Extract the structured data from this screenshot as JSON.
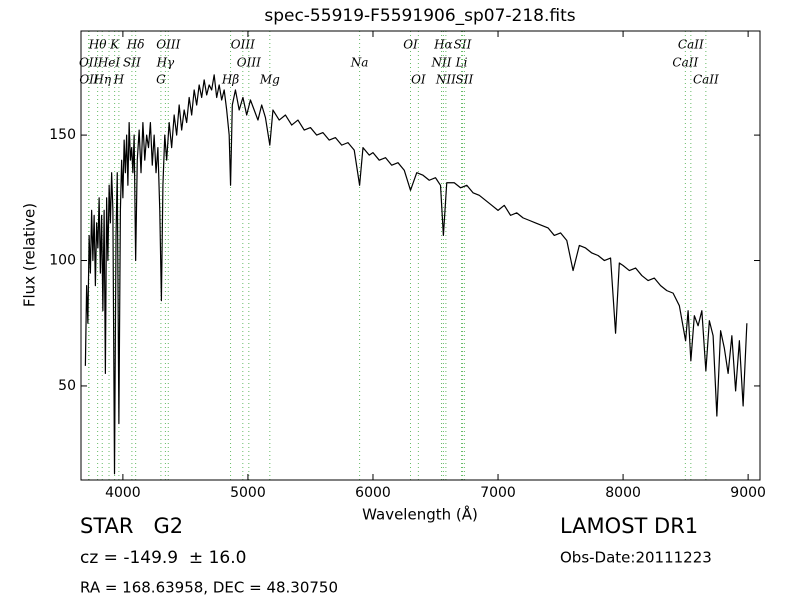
{
  "chart_data": {
    "type": "line",
    "title": "spec-55919-F5591906_sp07-218.fits",
    "x_label": "Wavelength (Å)",
    "y_label": "Flux (relative)",
    "xlim": [
      3665,
      9095
    ],
    "ylim": [
      12.5,
      191.5
    ],
    "xticks": [
      4000,
      5000,
      6000,
      7000,
      8000,
      9000
    ],
    "yticks": [
      50,
      100,
      150
    ],
    "color": "#000000",
    "line_color": "#66bb66",
    "x": [
      3700,
      3710,
      3720,
      3730,
      3740,
      3750,
      3760,
      3770,
      3780,
      3790,
      3800,
      3810,
      3820,
      3830,
      3840,
      3850,
      3860,
      3870,
      3880,
      3890,
      3900,
      3910,
      3920,
      3933,
      3945,
      3955,
      3968,
      3980,
      3990,
      4000,
      4010,
      4020,
      4030,
      4040,
      4050,
      4060,
      4070,
      4080,
      4090,
      4102,
      4115,
      4130,
      4145,
      4160,
      4175,
      4190,
      4205,
      4220,
      4235,
      4250,
      4265,
      4280,
      4295,
      4308,
      4320,
      4335,
      4350,
      4370,
      4390,
      4410,
      4430,
      4450,
      4470,
      4490,
      4510,
      4530,
      4550,
      4570,
      4590,
      4610,
      4630,
      4650,
      4670,
      4690,
      4710,
      4730,
      4750,
      4770,
      4790,
      4810,
      4830,
      4850,
      4861,
      4875,
      4900,
      4930,
      4960,
      4990,
      5020,
      5050,
      5080,
      5110,
      5140,
      5175,
      5200,
      5250,
      5300,
      5350,
      5400,
      5450,
      5500,
      5550,
      5600,
      5650,
      5700,
      5750,
      5800,
      5850,
      5893,
      5920,
      5970,
      6000,
      6050,
      6100,
      6150,
      6200,
      6250,
      6300,
      6350,
      6400,
      6450,
      6500,
      6540,
      6563,
      6590,
      6650,
      6700,
      6750,
      6800,
      6850,
      6900,
      6950,
      7000,
      7050,
      7100,
      7150,
      7200,
      7250,
      7300,
      7350,
      7400,
      7450,
      7500,
      7550,
      7600,
      7650,
      7700,
      7750,
      7800,
      7850,
      7900,
      7940,
      7970,
      8000,
      8050,
      8100,
      8150,
      8200,
      8250,
      8300,
      8350,
      8400,
      8450,
      8500,
      8520,
      8542,
      8570,
      8600,
      8630,
      8662,
      8690,
      8720,
      8750,
      8780,
      8810,
      8840,
      8870,
      8900,
      8930,
      8960,
      8990
    ],
    "values": [
      58,
      90,
      75,
      110,
      95,
      120,
      100,
      118,
      90,
      115,
      105,
      125,
      95,
      118,
      80,
      120,
      55,
      125,
      100,
      130,
      115,
      135,
      120,
      15,
      110,
      135,
      35,
      120,
      140,
      125,
      148,
      135,
      150,
      130,
      155,
      140,
      145,
      135,
      150,
      100,
      140,
      152,
      135,
      155,
      140,
      150,
      145,
      155,
      138,
      150,
      135,
      145,
      120,
      84,
      130,
      150,
      140,
      155,
      145,
      158,
      150,
      162,
      152,
      160,
      155,
      165,
      158,
      168,
      162,
      170,
      165,
      172,
      166,
      170,
      168,
      174,
      165,
      170,
      164,
      168,
      160,
      150,
      130,
      162,
      168,
      160,
      165,
      158,
      164,
      160,
      156,
      162,
      157,
      146,
      160,
      156,
      158,
      154,
      156,
      152,
      153,
      150,
      151,
      148,
      149,
      146,
      147,
      144,
      130,
      145,
      142,
      143,
      140,
      141,
      138,
      139,
      136,
      128,
      135,
      134,
      132,
      133,
      130,
      110,
      131,
      131,
      129,
      130,
      127,
      126,
      124,
      122,
      120,
      122,
      118,
      119,
      117,
      116,
      115,
      114,
      113,
      110,
      111,
      108,
      96,
      106,
      105,
      103,
      102,
      100,
      101,
      71,
      99,
      98,
      96,
      97,
      94,
      92,
      93,
      90,
      88,
      87,
      82,
      68,
      80,
      60,
      78,
      74,
      80,
      56,
      76,
      70,
      38,
      72,
      65,
      55,
      70,
      48,
      68,
      42,
      75
    ],
    "lines": [
      {
        "label": "OII",
        "wavelength": 3726
      },
      {
        "label": "OII",
        "wavelength": 3729
      },
      {
        "label": "Hθ",
        "wavelength": 3798
      },
      {
        "label": "Hη",
        "wavelength": 3835
      },
      {
        "label": "HeI",
        "wavelength": 3889
      },
      {
        "label": "K",
        "wavelength": 3934
      },
      {
        "label": "H",
        "wavelength": 3968
      },
      {
        "label": "SII",
        "wavelength": 4072
      },
      {
        "label": "Hδ",
        "wavelength": 4102
      },
      {
        "label": "G",
        "wavelength": 4304
      },
      {
        "label": "Hγ",
        "wavelength": 4340
      },
      {
        "label": "OIII",
        "wavelength": 4363
      },
      {
        "label": "Hβ",
        "wavelength": 4861
      },
      {
        "label": "OIII",
        "wavelength": 4959
      },
      {
        "label": "OIII",
        "wavelength": 5007
      },
      {
        "label": "Mg",
        "wavelength": 5175
      },
      {
        "label": "Na",
        "wavelength": 5893
      },
      {
        "label": "OI",
        "wavelength": 6300
      },
      {
        "label": "OI",
        "wavelength": 6363
      },
      {
        "label": "NII",
        "wavelength": 6548
      },
      {
        "label": "Hα",
        "wavelength": 6563
      },
      {
        "label": "NII",
        "wavelength": 6583
      },
      {
        "label": "Li",
        "wavelength": 6708
      },
      {
        "label": "SII",
        "wavelength": 6716
      },
      {
        "label": "SII",
        "wavelength": 6731
      },
      {
        "label": "CaII",
        "wavelength": 8498
      },
      {
        "label": "CaII",
        "wavelength": 8542
      },
      {
        "label": "CaII",
        "wavelength": 8662
      }
    ],
    "info": {
      "class": "STAR   G2",
      "cz": "cz = -149.9  ± 16.0",
      "coords": "RA = 168.63958, DEC = 48.30750",
      "survey": "LAMOST DR1",
      "date": "Obs-Date:20111223"
    }
  }
}
